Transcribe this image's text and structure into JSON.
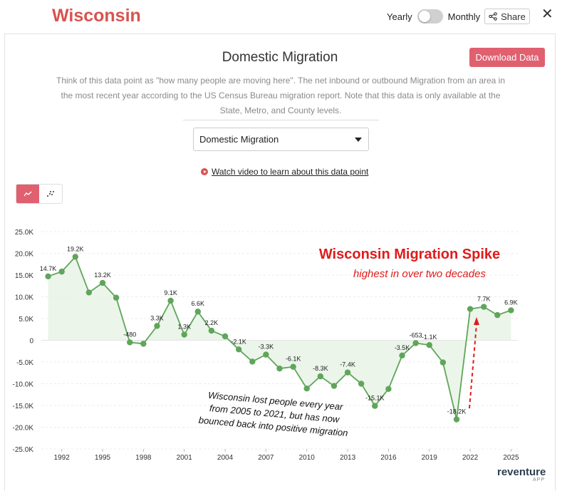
{
  "header": {
    "state": "Wisconsin",
    "toggle_left": "Yearly",
    "toggle_right": "Monthly",
    "share_label": "Share",
    "close_symbol": "✕"
  },
  "panel": {
    "title": "Domestic Migration",
    "download_label": "Download Data",
    "description": "Think of this data point as \"how many people are moving here\". The net inbound or outbound Migration from an area in the most recent year according to the US Census Bureau migration report. Note that this data is only available at the State, Metro, and County levels.",
    "select_value": "Domestic Migration",
    "video_label": "Watch video to learn about this data point"
  },
  "annotations": {
    "headline": "Wisconsin Migration Spike",
    "subhead": "highest in over two decades",
    "note_lines": [
      "Wisconsin lost people every year",
      "from 2005 to 2021, but has now",
      "bounced back into positive migration"
    ]
  },
  "brand": {
    "name": "reventure",
    "sub": "APP"
  },
  "colors": {
    "accent": "#e06070",
    "line": "#5fa55a",
    "fill": "#e8f3e6",
    "annotation": "#e01b1b"
  },
  "icons": {
    "chart_line": "line-chart-icon",
    "chart_scatter": "scatter-chart-icon",
    "share": "share-icon",
    "play": "play-icon"
  },
  "chart_data": {
    "type": "area",
    "ylim": [
      -25000,
      25000
    ],
    "y_ticks": [
      "25.0K",
      "20.0K",
      "15.0K",
      "10.0K",
      "5.0K",
      "0",
      "-5.0K",
      "-10.0K",
      "-15.0K",
      "-20.0K",
      "-25.0K"
    ],
    "x_ticks": [
      "1992",
      "1995",
      "1998",
      "2001",
      "2004",
      "2007",
      "2010",
      "2013",
      "2016",
      "2019",
      "2022",
      "2025"
    ],
    "x": [
      1991,
      1992,
      1993,
      1994,
      1995,
      1996,
      1997,
      1998,
      1999,
      2000,
      2001,
      2002,
      2003,
      2004,
      2005,
      2006,
      2007,
      2008,
      2009,
      2010,
      2011,
      2012,
      2013,
      2014,
      2015,
      2016,
      2017,
      2018,
      2019,
      2020,
      2021,
      2022,
      2023,
      2024,
      2025
    ],
    "series": [
      {
        "values": [
          14700,
          15800,
          19200,
          11000,
          13200,
          9800,
          -480,
          -800,
          3300,
          9100,
          1300,
          6600,
          2200,
          900,
          -2100,
          -4900,
          -3300,
          -6500,
          -6100,
          -11100,
          -8300,
          -10500,
          -7400,
          -10000,
          -15100,
          -11200,
          -3500,
          -653,
          -1100,
          -5100,
          -18200,
          7200,
          7700,
          5800,
          6900
        ]
      }
    ],
    "data_labels": [
      {
        "i": 0,
        "text": "14.7K"
      },
      {
        "i": 2,
        "text": "19.2K"
      },
      {
        "i": 4,
        "text": "13.2K"
      },
      {
        "i": 6,
        "text": "-480"
      },
      {
        "i": 8,
        "text": "3.3K"
      },
      {
        "i": 9,
        "text": "9.1K"
      },
      {
        "i": 10,
        "text": "1.3K"
      },
      {
        "i": 11,
        "text": "6.6K"
      },
      {
        "i": 12,
        "text": "2.2K"
      },
      {
        "i": 14,
        "text": "-2.1K"
      },
      {
        "i": 16,
        "text": "-3.3K"
      },
      {
        "i": 18,
        "text": "-6.1K"
      },
      {
        "i": 20,
        "text": "-8.3K"
      },
      {
        "i": 22,
        "text": "-7.4K"
      },
      {
        "i": 24,
        "text": "-15.1K"
      },
      {
        "i": 26,
        "text": "-3.5K"
      },
      {
        "i": 27,
        "text": "-653"
      },
      {
        "i": 28,
        "text": "-1.1K"
      },
      {
        "i": 30,
        "text": "-18.2K"
      },
      {
        "i": 32,
        "text": "7.7K"
      },
      {
        "i": 34,
        "text": "6.9K"
      }
    ],
    "grid": true
  }
}
